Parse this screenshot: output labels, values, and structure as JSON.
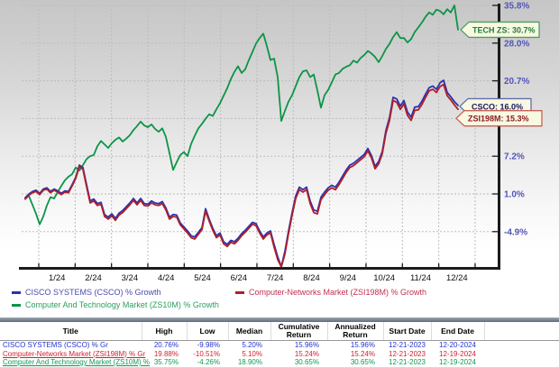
{
  "chart_data": {
    "type": "line",
    "title": "",
    "scale": "log-growth-percent",
    "x_axis": {
      "labels": [
        "1/24",
        "2/24",
        "3/24",
        "4/24",
        "5/24",
        "6/24",
        "7/24",
        "8/24",
        "9/24",
        "10/24",
        "11/24",
        "12/24"
      ]
    },
    "y_axis": {
      "unit": "%",
      "ticks": [
        {
          "value": 35.8,
          "label": "35.8%"
        },
        {
          "value": 28.0,
          "label": "28.0%"
        },
        {
          "value": 20.7,
          "label": "20.7%"
        },
        {
          "value": 13.7,
          "label": ""
        },
        {
          "value": 7.2,
          "label": "7.2%"
        },
        {
          "value": 1.0,
          "label": "1.0%"
        },
        {
          "value": -4.9,
          "label": "-4.9%"
        }
      ]
    },
    "series": [
      {
        "id": "zs10m",
        "name": "Computer And Technology Market (ZS10M) % Growth",
        "color": "#0d9448",
        "start_x": 28,
        "step_x": 4,
        "values": [
          0.2,
          0.6,
          -0.8,
          -2.2,
          -3.8,
          -2.6,
          -0.9,
          0.4,
          0.2,
          1.2,
          2.2,
          3.1,
          3.7,
          4.1,
          5.2,
          4.7,
          5.6,
          6.6,
          7.1,
          7.3,
          8.8,
          9.7,
          9.1,
          8.5,
          9.3,
          9.9,
          10.3,
          9.6,
          10.1,
          10.7,
          11.6,
          12.3,
          13.1,
          12.4,
          12.1,
          12.6,
          11.8,
          11.3,
          11.9,
          10.4,
          7.6,
          4.8,
          6.1,
          7.3,
          7.8,
          7.1,
          9.2,
          10.6,
          11.9,
          12.7,
          13.6,
          14.4,
          14.1,
          15.3,
          16.4,
          17.8,
          19.2,
          20.9,
          22.3,
          23.4,
          22.1,
          22.8,
          24.6,
          26.2,
          27.9,
          29.0,
          29.9,
          27.4,
          24.6,
          24.9,
          21.3,
          13.2,
          15.0,
          16.7,
          17.9,
          19.6,
          21.3,
          22.4,
          22.6,
          21.3,
          21.8,
          18.8,
          15.6,
          17.9,
          18.9,
          20.3,
          21.8,
          22.1,
          22.9,
          23.3,
          23.6,
          24.5,
          24.1,
          25.0,
          25.6,
          26.4,
          25.9,
          25.2,
          24.2,
          25.4,
          26.8,
          27.8,
          29.2,
          30.2,
          29.0,
          29.0,
          28.1,
          28.8,
          30.2,
          31.2,
          32.2,
          33.4,
          34.3,
          33.8,
          34.9,
          34.6,
          33.9,
          35.0,
          34.3,
          35.8,
          30.7
        ]
      },
      {
        "id": "csco",
        "name": "CISCO SYSTEMS (CSCO) % Growth",
        "color": "#2b32b2",
        "start_x": 28,
        "step_x": 4,
        "values": [
          0.3,
          0.9,
          1.3,
          1.5,
          1.0,
          1.7,
          1.9,
          1.3,
          1.7,
          1.4,
          1.0,
          1.4,
          1.3,
          2.4,
          3.6,
          5.6,
          5.2,
          2.4,
          -0.2,
          0.1,
          -0.6,
          -0.4,
          -2.3,
          -2.7,
          -2.2,
          -2.9,
          -2.1,
          -1.7,
          -1.1,
          -0.5,
          0.2,
          -0.5,
          0.2,
          -0.6,
          -0.7,
          -0.2,
          -0.5,
          -0.6,
          -0.3,
          -1.3,
          -2.7,
          -2.3,
          -2.4,
          -3.6,
          -4.2,
          -4.8,
          -5.5,
          -5.7,
          -5.0,
          -4.3,
          -1.4,
          -3.0,
          -4.4,
          -5.5,
          -5.1,
          -6.4,
          -6.8,
          -6.2,
          -6.4,
          -5.9,
          -5.2,
          -4.7,
          -4.1,
          -3.5,
          -3.7,
          -4.8,
          -5.7,
          -5.1,
          -4.8,
          -6.8,
          -8.6,
          -10.0,
          -7.8,
          -4.8,
          -2.0,
          0.6,
          2.0,
          1.6,
          2.0,
          -0.2,
          -1.6,
          -1.8,
          0.4,
          1.2,
          1.9,
          2.3,
          2.0,
          2.8,
          3.8,
          4.8,
          5.6,
          5.9,
          6.4,
          6.9,
          7.4,
          8.4,
          7.2,
          5.4,
          6.2,
          7.9,
          11.5,
          13.8,
          17.5,
          17.2,
          15.9,
          16.9,
          14.8,
          13.9,
          15.7,
          15.8,
          16.8,
          18.1,
          19.3,
          19.6,
          19.0,
          20.2,
          20.7,
          18.4,
          17.6,
          16.7,
          16.0
        ]
      },
      {
        "id": "zsi198m",
        "name": "Computer-Networks Market (ZSI198M) % Growth",
        "color": "#b01e28",
        "start_x": 28,
        "step_x": 4,
        "values": [
          0.1,
          0.7,
          1.1,
          1.3,
          0.8,
          1.5,
          1.7,
          1.1,
          1.5,
          1.2,
          0.8,
          1.2,
          1.1,
          2.2,
          3.4,
          5.4,
          4.9,
          2.1,
          -0.5,
          -0.2,
          -0.9,
          -0.7,
          -2.6,
          -3.0,
          -2.5,
          -3.2,
          -2.4,
          -2.0,
          -1.4,
          -0.8,
          -0.1,
          -0.8,
          -0.1,
          -0.9,
          -1.0,
          -0.5,
          -0.8,
          -0.9,
          -0.6,
          -1.6,
          -3.0,
          -2.6,
          -2.7,
          -3.9,
          -4.5,
          -5.1,
          -5.8,
          -6.0,
          -5.3,
          -4.6,
          -1.8,
          -3.3,
          -4.7,
          -5.8,
          -5.4,
          -6.7,
          -7.1,
          -6.5,
          -6.7,
          -6.2,
          -5.5,
          -5.0,
          -4.4,
          -3.8,
          -4.0,
          -5.1,
          -6.0,
          -5.4,
          -5.1,
          -7.2,
          -9.0,
          -10.5,
          -8.2,
          -5.2,
          -2.4,
          0.2,
          1.6,
          1.2,
          1.6,
          -0.6,
          -2.0,
          -2.2,
          0.0,
          0.8,
          1.5,
          1.9,
          1.6,
          2.4,
          3.4,
          4.4,
          5.2,
          5.5,
          6.0,
          6.5,
          7.0,
          8.0,
          6.8,
          5.0,
          5.8,
          7.5,
          11.0,
          13.3,
          16.9,
          16.6,
          15.3,
          16.3,
          14.2,
          13.3,
          15.1,
          15.2,
          16.2,
          17.5,
          18.7,
          19.0,
          18.4,
          19.5,
          19.9,
          17.8,
          17.0,
          16.1,
          15.3
        ]
      }
    ],
    "callouts": [
      {
        "label": "TECH ZS: 30.7%",
        "value": 30.7,
        "border": "#4d9e63",
        "text_color": "#1e7e3c",
        "fill": "#f9f8e0"
      },
      {
        "label": "CSCO: 16.0%",
        "value": 16.0,
        "border": "#5c6fae",
        "text_color": "#14165e",
        "fill": "#f9f8e0"
      },
      {
        "label": "ZSI198M: 15.3%",
        "value": 15.3,
        "border": "#c4625a",
        "text_color": "#8e1a24",
        "fill": "#f9f8e0"
      }
    ]
  },
  "legend": {
    "items": [
      {
        "id": "csco",
        "label": "CISCO SYSTEMS (CSCO) % Growth",
        "color": "#2b32b2",
        "text_color": "#4b4bb0"
      },
      {
        "id": "zsi198m",
        "label": "Computer-Networks Market (ZSI198M) % Growth",
        "color": "#b01e28",
        "text_color": "#c03050"
      },
      {
        "id": "zs10m",
        "label": "Computer And Technology Market (ZS10M) % Growth",
        "color": "#0d9448",
        "text_color": "#2aa060"
      }
    ]
  },
  "table": {
    "headers": [
      "Title",
      "High",
      "Low",
      "Median",
      "Cumulative Return",
      "Annualized Return",
      "Start Date",
      "End Date"
    ],
    "rows": [
      {
        "cells": [
          "CISCO SYSTEMS (CSCO) % Gr",
          "20.76%",
          "-9.98%",
          "5.20%",
          "15.96%",
          "15.96%",
          "12-21-2023",
          "12-20-2024"
        ],
        "color": "#2233cc",
        "underline": false
      },
      {
        "cells": [
          "Computer-Networks Market (ZSI198M) % Gr",
          "19.88%",
          "-10.51%",
          "5.10%",
          "15.24%",
          "15.24%",
          "12-21-2023",
          "12-19-2024"
        ],
        "color": "#cc2233",
        "underline": true
      },
      {
        "cells": [
          "Computer And Technology Market (ZS10M) %",
          "35.75%",
          "-4.26%",
          "18.90%",
          "30.65%",
          "30.65%",
          "12-21-2023",
          "12-19-2024"
        ],
        "color": "#119955",
        "underline": true
      }
    ]
  }
}
